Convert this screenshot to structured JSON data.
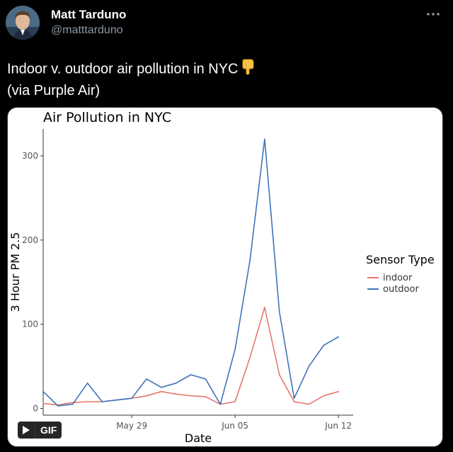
{
  "tweet": {
    "author_name": "Matt Tarduno",
    "author_handle": "@matttarduno",
    "text_line1": "Indoor v. outdoor air pollution in NYC",
    "text_line1_emoji": "pointing-down-emoji",
    "text_line2": "(via Purple Air)",
    "more_icon": "more-options-icon",
    "gif_label": "GIF"
  },
  "colors": {
    "background": "#000000",
    "handle": "#8b98a5",
    "indoor": "#e7776e",
    "outdoor": "#3d74ba"
  },
  "chart_data": {
    "type": "line",
    "title": "Air Pollution in NYC",
    "xlabel": "Date",
    "ylabel": "3 Hour PM 2.5",
    "x_ticks": [
      "May 29",
      "Jun 05",
      "Jun 12"
    ],
    "y_ticks": [
      0,
      100,
      200,
      300
    ],
    "xlim": [
      "2020-05-23",
      "2020-06-13"
    ],
    "ylim": [
      -8,
      332
    ],
    "legend_title": "Sensor Type",
    "legend_position": "right",
    "grid": false,
    "x": [
      "2020-05-23",
      "2020-05-24",
      "2020-05-25",
      "2020-05-26",
      "2020-05-27",
      "2020-05-28",
      "2020-05-29",
      "2020-05-30",
      "2020-05-31",
      "2020-06-01",
      "2020-06-02",
      "2020-06-03",
      "2020-06-04",
      "2020-06-05",
      "2020-06-06",
      "2020-06-07",
      "2020-06-08",
      "2020-06-09",
      "2020-06-10",
      "2020-06-11",
      "2020-06-12"
    ],
    "series": [
      {
        "name": "indoor",
        "values": [
          6,
          4,
          7,
          8,
          8,
          10,
          12,
          15,
          20,
          17,
          15,
          14,
          5,
          8,
          60,
          120,
          40,
          8,
          5,
          15,
          20
        ]
      },
      {
        "name": "outdoor",
        "values": [
          20,
          3,
          5,
          30,
          8,
          10,
          12,
          35,
          25,
          30,
          40,
          35,
          5,
          70,
          175,
          320,
          115,
          12,
          50,
          75,
          85
        ]
      }
    ]
  }
}
